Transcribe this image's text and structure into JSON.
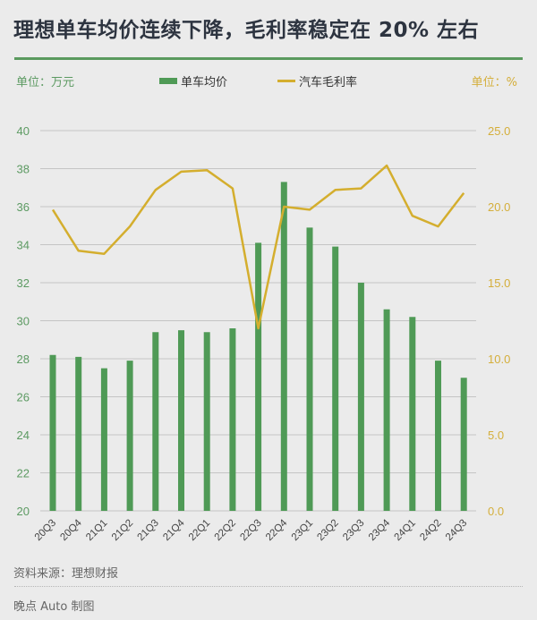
{
  "title": "理想单车均价连续下降，毛利率稳定在 20% 左右",
  "unit_left": "单位：万元",
  "unit_right": "单位：%",
  "legend": {
    "bar_label": "单车均价",
    "line_label": "汽车毛利率"
  },
  "colors": {
    "bar": "#4f9a56",
    "line": "#d4ae2e",
    "left_axis_text": "#5c9a62",
    "right_axis_text": "#d4ae3a",
    "grid": "#c4c4c4",
    "title": "#2d3440",
    "rule": "#5a9a5e"
  },
  "source": "资料来源：理想财报",
  "credit": "晚点 Auto 制图",
  "chart_data": {
    "type": "bar+line",
    "title": "理想单车均价连续下降，毛利率稳定在 20% 左右",
    "categories": [
      "20Q3",
      "20Q4",
      "21Q1",
      "21Q2",
      "21Q3",
      "21Q4",
      "22Q1",
      "22Q2",
      "22Q3",
      "22Q4",
      "23Q1",
      "23Q2",
      "23Q3",
      "23Q4",
      "24Q1",
      "24Q2",
      "24Q3"
    ],
    "series": [
      {
        "name": "单车均价",
        "type": "bar",
        "axis": "left",
        "unit": "万元",
        "values": [
          28.2,
          28.1,
          27.5,
          27.9,
          29.4,
          29.5,
          29.4,
          29.6,
          34.1,
          37.3,
          34.9,
          33.9,
          32.0,
          30.6,
          30.2,
          27.9,
          27.0
        ]
      },
      {
        "name": "汽车毛利率",
        "type": "line",
        "axis": "right",
        "unit": "%",
        "values": [
          19.8,
          17.1,
          16.9,
          18.7,
          21.1,
          22.3,
          22.4,
          21.2,
          12.0,
          20.0,
          19.8,
          21.1,
          21.2,
          22.7,
          19.4,
          18.7,
          20.9
        ]
      }
    ],
    "left_axis": {
      "label": "单位：万元",
      "range": [
        20,
        40
      ],
      "ticks": [
        "20",
        "22",
        "24",
        "26",
        "28",
        "30",
        "32",
        "34",
        "36",
        "38",
        "40"
      ]
    },
    "right_axis": {
      "label": "单位：%",
      "range": [
        0,
        25
      ],
      "ticks": [
        "0.0",
        "5.0",
        "10.0",
        "15.0",
        "20.0",
        "25.0"
      ]
    },
    "grid": true,
    "legend_position": "top-center"
  }
}
